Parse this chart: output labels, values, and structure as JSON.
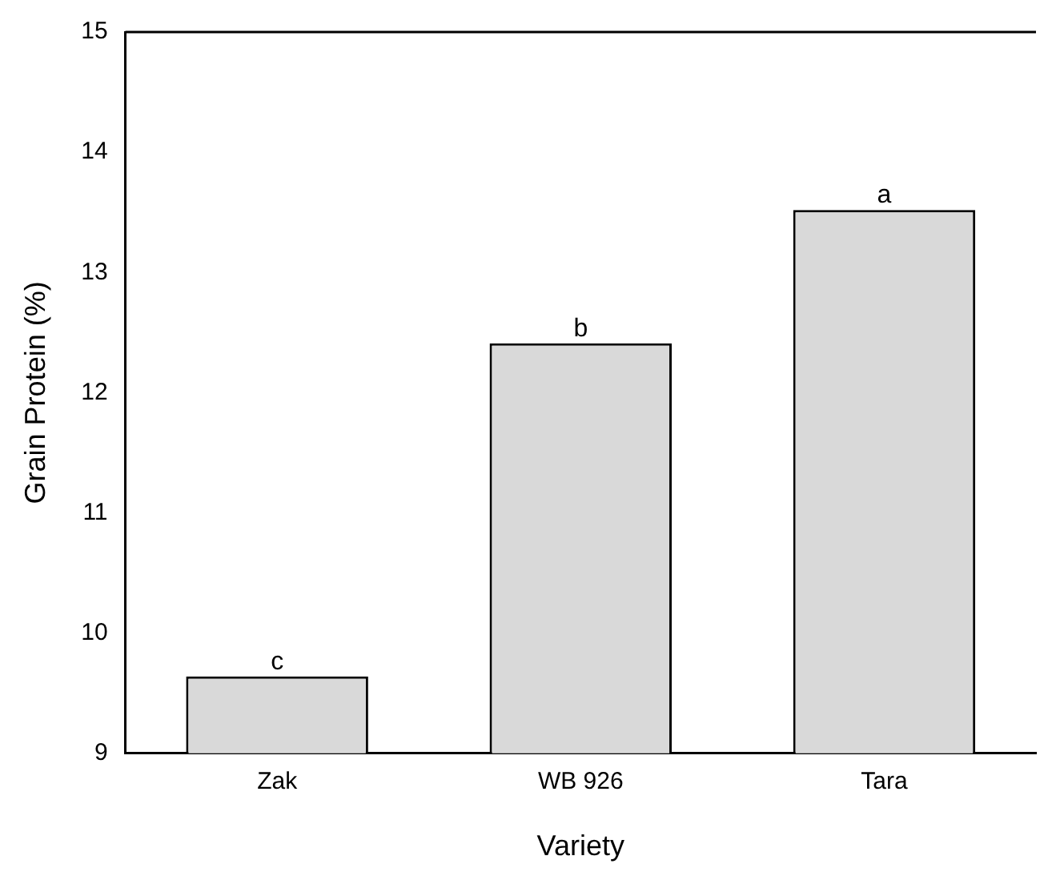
{
  "chart_data": {
    "type": "bar",
    "xlabel": "Variety",
    "ylabel": "Grain Protein (%)",
    "categories": [
      "Zak",
      "WB 926",
      "Tara"
    ],
    "values": [
      9.64,
      12.41,
      13.52
    ],
    "color": "#d9d9d9",
    "ylim": [
      9,
      15
    ],
    "yticks": [
      9,
      10,
      11,
      12,
      13,
      14,
      15
    ],
    "grid": false,
    "legend": false,
    "annotations": [
      {
        "text": "c",
        "x": "Zak",
        "y": 9.64
      },
      {
        "text": "b",
        "x": "WB 926",
        "y": 12.41
      },
      {
        "text": "a",
        "x": "Tara",
        "y": 13.52
      }
    ]
  }
}
